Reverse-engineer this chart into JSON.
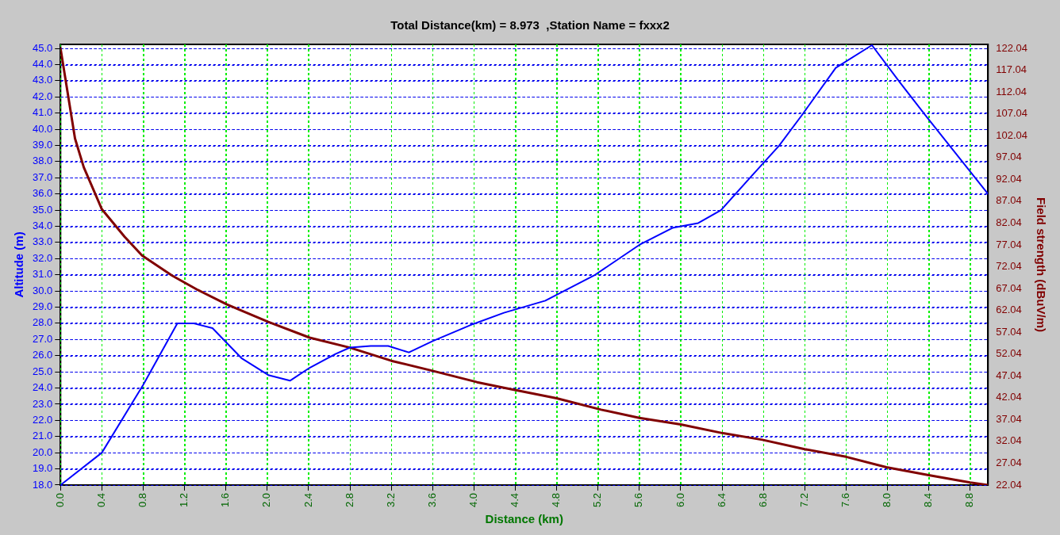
{
  "chart_data": {
    "type": "line",
    "title": "Total Distance(km) = 8.973  ,Station Name = fxxx2",
    "xlabel": "Distance (km)",
    "ylabel": "Altitude (m)",
    "y2label": "Field strength (dBuV/m)",
    "xlim": [
      0,
      8.973
    ],
    "xticks": [
      {
        "value": 0,
        "label": "0.0"
      },
      0.4,
      0.8,
      1.2,
      1.6,
      {
        "value": 2,
        "label": "2.0"
      },
      2.4,
      2.8,
      3.2,
      3.6,
      {
        "value": 4,
        "label": "4.0"
      },
      4.4,
      4.8,
      5.2,
      5.6,
      {
        "value": 6,
        "label": "6.0"
      },
      6.4,
      6.8,
      7.2,
      7.6,
      {
        "value": 8,
        "label": "8.0"
      },
      8.4,
      8.8
    ],
    "ylim": [
      18,
      45.25
    ],
    "yticks": [
      {
        "value": 18,
        "label": "18.0"
      },
      {
        "value": 19,
        "label": "19.0"
      },
      {
        "value": 20,
        "label": "20.0"
      },
      {
        "value": 21,
        "label": "21.0"
      },
      {
        "value": 22,
        "label": "22.0"
      },
      {
        "value": 23,
        "label": "23.0"
      },
      {
        "value": 24,
        "label": "24.0"
      },
      {
        "value": 25,
        "label": "25.0"
      },
      {
        "value": 26,
        "label": "26.0"
      },
      {
        "value": 27,
        "label": "27.0"
      },
      {
        "value": 28,
        "label": "28.0"
      },
      {
        "value": 29,
        "label": "29.0"
      },
      {
        "value": 30,
        "label": "30.0"
      },
      {
        "value": 31,
        "label": "31.0"
      },
      {
        "value": 32,
        "label": "32.0"
      },
      {
        "value": 33,
        "label": "33.0"
      },
      {
        "value": 34,
        "label": "34.0"
      },
      {
        "value": 35,
        "label": "35.0"
      },
      {
        "value": 36,
        "label": "36.0"
      },
      {
        "value": 37,
        "label": "37.0"
      },
      {
        "value": 38,
        "label": "38.0"
      },
      {
        "value": 39,
        "label": "39.0"
      },
      {
        "value": 40,
        "label": "40.0"
      },
      {
        "value": 41,
        "label": "41.0"
      },
      {
        "value": 42,
        "label": "42.0"
      },
      {
        "value": 43,
        "label": "43.0"
      },
      {
        "value": 44,
        "label": "44.0"
      },
      {
        "value": 45,
        "label": "45.0"
      }
    ],
    "y2lim": [
      22.04,
      122.97
    ],
    "y2ticks": [
      22.04,
      27.04,
      32.04,
      37.04,
      42.04,
      47.04,
      52.04,
      57.04,
      62.04,
      67.04,
      72.04,
      77.04,
      82.04,
      87.04,
      92.04,
      97.04,
      102.04,
      107.04,
      112.04,
      117.04,
      122.04
    ],
    "grid": true,
    "legend": false,
    "marker": "none",
    "line_style": "solid",
    "series": [
      {
        "color": "#0000ff",
        "x": [
          0,
          0.4,
          0.8,
          1.13,
          1.29,
          1.47,
          1.75,
          2.01,
          2.22,
          2.41,
          2.66,
          2.8,
          3.0,
          3.17,
          3.37,
          3.6,
          3.99,
          4.29,
          4.69,
          5.16,
          5.6,
          5.92,
          6.17,
          6.39,
          6.67,
          6.95,
          7.17,
          7.5,
          7.85,
          8.12,
          8.37,
          8.973
        ],
        "values": [
          18.0,
          20.0,
          24.2,
          28.0,
          28.0,
          27.7,
          25.85,
          24.8,
          24.45,
          25.25,
          26.1,
          26.5,
          26.6,
          26.6,
          26.2,
          26.9,
          27.95,
          28.65,
          29.4,
          30.95,
          32.85,
          33.9,
          34.2,
          35.0,
          37.0,
          38.97,
          40.85,
          43.8,
          45.2,
          42.9,
          40.85,
          36.0
        ]
      },
      {
        "color": "#800000",
        "axis": "y2",
        "x": [
          0,
          0.14,
          0.225,
          0.4,
          0.62,
          0.79,
          1.08,
          1.33,
          1.61,
          2.01,
          2.41,
          2.8,
          3.2,
          3.6,
          4.03,
          4.29,
          4.8,
          5.23,
          5.6,
          6.0,
          6.41,
          6.79,
          7.2,
          7.6,
          7.99,
          8.4,
          8.8,
          8.973
        ],
        "values": [
          122.04,
          101.4,
          94.8,
          85.2,
          78.9,
          74.6,
          70.0,
          66.7,
          63.4,
          59.4,
          55.8,
          53.5,
          50.5,
          48.2,
          45.6,
          44.3,
          41.9,
          39.3,
          37.4,
          35.9,
          33.9,
          32.4,
          30.25,
          28.5,
          26.1,
          24.3,
          22.6,
          22.04
        ]
      }
    ]
  }
}
